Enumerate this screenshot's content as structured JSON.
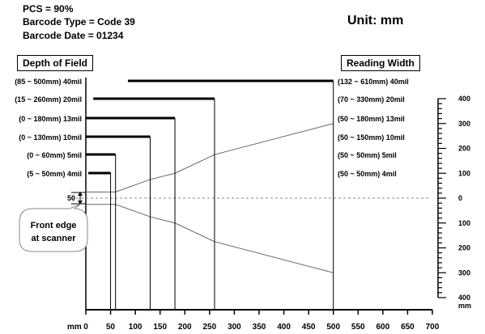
{
  "specs": {
    "pcs": "PCS = 90%",
    "barcode_type": "Barcode Type = Code 39",
    "barcode_date": "Barcode Date = 01234"
  },
  "unit_label": "Unit: mm",
  "depth_of_field_title": "Depth of Field",
  "reading_width_title": "Reading Width",
  "front_edge_label": [
    "Front edge",
    "at scanner"
  ],
  "front_edge_value": "50",
  "chart_data": {
    "type": "bar",
    "title": "",
    "xlabel": "mm",
    "ylabel": "mm",
    "x_ticks": [
      0,
      50,
      100,
      150,
      200,
      250,
      300,
      350,
      400,
      450,
      500,
      550,
      600,
      650,
      700
    ],
    "xlim": [
      0,
      700
    ],
    "y_ticks": [
      400,
      300,
      200,
      100,
      0,
      100,
      200,
      300,
      400
    ],
    "ylim": [
      -400,
      400
    ],
    "series": [
      {
        "name": "40mil",
        "dof_label": "(85 ~ 500mm) 40mil",
        "width_label": "(132 ~ 610mm) 40mil",
        "range": [
          85,
          500
        ],
        "reading_width": [
          132,
          610
        ]
      },
      {
        "name": "20mil",
        "dof_label": "(15 ~ 260mm) 20mil",
        "width_label": "(70 ~ 330mm) 20mil",
        "range": [
          15,
          260
        ],
        "reading_width": [
          70,
          330
        ]
      },
      {
        "name": "13mil",
        "dof_label": "(0 ~ 180mm) 13mil",
        "width_label": "(50 ~ 180mm) 13mil",
        "range": [
          0,
          180
        ],
        "reading_width": [
          50,
          180
        ]
      },
      {
        "name": "10mil",
        "dof_label": "(0 ~ 130mm) 10mil",
        "width_label": "(50 ~ 150mm) 10mil",
        "range": [
          0,
          130
        ],
        "reading_width": [
          50,
          150
        ]
      },
      {
        "name": "5mil",
        "dof_label": "(0 ~ 60mm) 5mil",
        "width_label": "(50 ~ 50mm) 5mil",
        "range": [
          0,
          60
        ],
        "reading_width": [
          50,
          50
        ]
      },
      {
        "name": "4mil",
        "dof_label": "(5 ~ 50mm) 4mil",
        "width_label": "(50 ~ 50mm) 4mil",
        "range": [
          5,
          50
        ],
        "reading_width": [
          50,
          50
        ]
      }
    ],
    "reading_envelope": [
      [
        0,
        25
      ],
      [
        60,
        25
      ],
      [
        130,
        75
      ],
      [
        180,
        100
      ],
      [
        260,
        175
      ],
      [
        500,
        300
      ]
    ],
    "colors": {
      "bars": "#000000",
      "envelope": "#666666",
      "centerline": "#888888"
    }
  }
}
